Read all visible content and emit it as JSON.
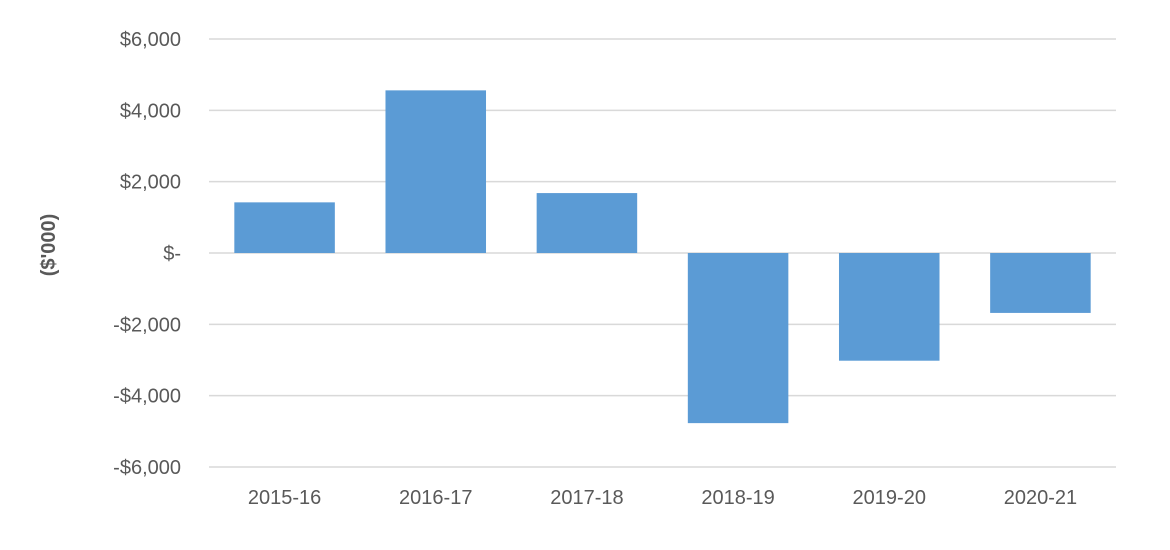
{
  "chart_data": {
    "type": "bar",
    "title": "",
    "xlabel": "",
    "ylabel": "($'000)",
    "categories": [
      "2015-16",
      "2016-17",
      "2017-18",
      "2018-19",
      "2019-20",
      "2020-21"
    ],
    "values": [
      1420,
      4560,
      1680,
      -4770,
      -3020,
      -1680
    ],
    "ylim": [
      -6000,
      6000
    ],
    "yticks": [
      6000,
      4000,
      2000,
      0,
      -2000,
      -4000,
      -6000
    ],
    "ytick_labels": [
      "$6,000",
      "$4,000",
      "$2,000",
      "$-",
      "-$2,000",
      "-$4,000",
      "-$6,000"
    ],
    "grid": true,
    "legend": "none",
    "bar_color": "#5b9bd5",
    "grid_color": "#d9d9d9"
  }
}
